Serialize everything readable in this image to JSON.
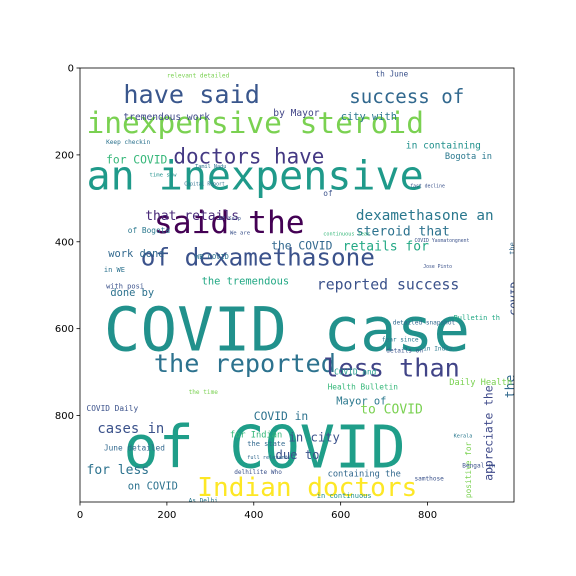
{
  "chart_data": {
    "type": "wordcloud",
    "title": "",
    "xlabel": "",
    "ylabel": "",
    "xlim": [
      0,
      999
    ],
    "ylim": [
      999,
      0
    ],
    "x_ticks": [
      0,
      200,
      400,
      600,
      800
    ],
    "y_ticks": [
      0,
      200,
      400,
      600,
      800
    ],
    "grid": false,
    "colormap": "viridis",
    "words": [
      {
        "text": "COVID case",
        "x": 55,
        "y": 650,
        "size": 140,
        "color": "#21918c"
      },
      {
        "text": "of COVID",
        "x": 100,
        "y": 920,
        "size": 135,
        "color": "#1f9e89"
      },
      {
        "text": "an inexpensive",
        "x": 15,
        "y": 280,
        "size": 92,
        "color": "#1f9a8a"
      },
      {
        "text": "inexpensive steroid",
        "x": 15,
        "y": 150,
        "size": 68,
        "color": "#7ad151"
      },
      {
        "text": "have said",
        "x": 100,
        "y": 80,
        "size": 58,
        "color": "#39568c"
      },
      {
        "text": "said the",
        "x": 170,
        "y": 380,
        "size": 72,
        "color": "#440154"
      },
      {
        "text": "of dexamethasone",
        "x": 140,
        "y": 455,
        "size": 56,
        "color": "#3b528b"
      },
      {
        "text": "the reported",
        "x": 170,
        "y": 700,
        "size": 58,
        "color": "#2c728e"
      },
      {
        "text": "less than",
        "x": 560,
        "y": 710,
        "size": 58,
        "color": "#414487"
      },
      {
        "text": "Indian doctors",
        "x": 270,
        "y": 985,
        "size": 60,
        "color": "#fde725"
      },
      {
        "text": "doctors have",
        "x": 215,
        "y": 220,
        "size": 48,
        "color": "#443983"
      },
      {
        "text": "success of",
        "x": 620,
        "y": 80,
        "size": 44,
        "color": "#31688e"
      },
      {
        "text": "dexamethasone an",
        "x": 635,
        "y": 350,
        "size": 33,
        "color": "#2a788e"
      },
      {
        "text": "reported success",
        "x": 545,
        "y": 510,
        "size": 34,
        "color": "#3b528b"
      },
      {
        "text": "retails for",
        "x": 605,
        "y": 420,
        "size": 30,
        "color": "#22a884"
      },
      {
        "text": "steroid that",
        "x": 635,
        "y": 385,
        "size": 30,
        "color": "#2c728e"
      },
      {
        "text": "that retails",
        "x": 150,
        "y": 350,
        "size": 30,
        "color": "#482878"
      },
      {
        "text": "the COVID",
        "x": 440,
        "y": 418,
        "size": 26,
        "color": "#31688e"
      },
      {
        "text": "cases in",
        "x": 40,
        "y": 840,
        "size": 32,
        "color": "#3b528b"
      },
      {
        "text": "for less",
        "x": 15,
        "y": 935,
        "size": 30,
        "color": "#2c728e"
      },
      {
        "text": "on COVID",
        "x": 110,
        "y": 970,
        "size": 24,
        "color": "#2c728e"
      },
      {
        "text": "for COVID",
        "x": 60,
        "y": 220,
        "size": 26,
        "color": "#35b779"
      },
      {
        "text": "tremendous work",
        "x": 100,
        "y": 120,
        "size": 22,
        "color": "#3e4989"
      },
      {
        "text": "by Mayor",
        "x": 445,
        "y": 110,
        "size": 22,
        "color": "#414487"
      },
      {
        "text": "city with",
        "x": 600,
        "y": 120,
        "size": 24,
        "color": "#2a788e"
      },
      {
        "text": "the tremendous",
        "x": 280,
        "y": 498,
        "size": 24,
        "color": "#22a884"
      },
      {
        "text": "done by",
        "x": 70,
        "y": 525,
        "size": 24,
        "color": "#2c728e"
      },
      {
        "text": "work done",
        "x": 65,
        "y": 435,
        "size": 24,
        "color": "#31688e"
      },
      {
        "text": "due to",
        "x": 450,
        "y": 900,
        "size": 28,
        "color": "#3b528b"
      },
      {
        "text": "to COVID",
        "x": 645,
        "y": 795,
        "size": 30,
        "color": "#7ad151"
      },
      {
        "text": "COVID in",
        "x": 400,
        "y": 810,
        "size": 26,
        "color": "#2c728e"
      },
      {
        "text": "in city",
        "x": 480,
        "y": 860,
        "size": 28,
        "color": "#3b528b"
      },
      {
        "text": "Mayor of",
        "x": 590,
        "y": 775,
        "size": 24,
        "color": "#2a788e"
      },
      {
        "text": "containing the",
        "x": 570,
        "y": 940,
        "size": 20,
        "color": "#31688e"
      },
      {
        "text": "appreciate the",
        "x": 950,
        "y": 950,
        "size": 26,
        "color": "#3e4989",
        "rotate": -90
      },
      {
        "text": "the",
        "x": 1000,
        "y": 760,
        "size": 30,
        "color": "#31688e",
        "rotate": -90
      },
      {
        "text": "COVID",
        "x": 1010,
        "y": 570,
        "size": 26,
        "color": "#3b528b",
        "rotate": -90
      },
      {
        "text": "in containing",
        "x": 750,
        "y": 185,
        "size": 22,
        "color": "#21918c"
      },
      {
        "text": "Bogota in",
        "x": 840,
        "y": 210,
        "size": 20,
        "color": "#2a788e"
      },
      {
        "text": "Health Bulletin",
        "x": 570,
        "y": 740,
        "size": 18,
        "color": "#35b779"
      },
      {
        "text": "Daily Health",
        "x": 850,
        "y": 730,
        "size": 20,
        "color": "#7ad151"
      },
      {
        "text": "COVID and",
        "x": 585,
        "y": 705,
        "size": 18,
        "color": "#1f9a8a"
      },
      {
        "text": "of Bogota",
        "x": 110,
        "y": 380,
        "size": 18,
        "color": "#2a788e"
      },
      {
        "text": "in WE",
        "x": 55,
        "y": 470,
        "size": 16,
        "color": "#2c728e"
      },
      {
        "text": "with posi",
        "x": 60,
        "y": 508,
        "size": 16,
        "color": "#3b528b"
      },
      {
        "text": "COVID Daily",
        "x": 15,
        "y": 790,
        "size": 18,
        "color": "#3b528b"
      },
      {
        "text": "June detailed",
        "x": 55,
        "y": 880,
        "size": 18,
        "color": "#31688e"
      },
      {
        "text": "for Indian",
        "x": 345,
        "y": 850,
        "size": 20,
        "color": "#35b779"
      },
      {
        "text": "WB COVID",
        "x": 265,
        "y": 440,
        "size": 16,
        "color": "#2c728e"
      },
      {
        "text": "Keep checkin",
        "x": 60,
        "y": 175,
        "size": 14,
        "color": "#2c728e"
      },
      {
        "text": "time saw",
        "x": 160,
        "y": 250,
        "size": 13,
        "color": "#21918c"
      },
      {
        "text": "relevant detailed",
        "x": 200,
        "y": 22,
        "size": 14,
        "color": "#7ad151"
      },
      {
        "text": "th June",
        "x": 680,
        "y": 20,
        "size": 18,
        "color": "#3b528b"
      },
      {
        "text": "Bulletin th",
        "x": 860,
        "y": 580,
        "size": 16,
        "color": "#22a884"
      },
      {
        "text": "the time",
        "x": 250,
        "y": 750,
        "size": 14,
        "color": "#7ad151"
      },
      {
        "text": "the state",
        "x": 385,
        "y": 870,
        "size": 16,
        "color": "#31688e"
      },
      {
        "text": "delhilite Who",
        "x": 355,
        "y": 935,
        "size": 14,
        "color": "#3b528b"
      },
      {
        "text": "in continuous",
        "x": 545,
        "y": 990,
        "size": 16,
        "color": "#21918c"
      },
      {
        "text": "detailed snapshot",
        "x": 720,
        "y": 590,
        "size": 14,
        "color": "#31688e"
      },
      {
        "text": "fear since",
        "x": 695,
        "y": 630,
        "size": 14,
        "color": "#2a788e"
      },
      {
        "text": "in India",
        "x": 790,
        "y": 650,
        "size": 14,
        "color": "#2a788e"
      },
      {
        "text": "details on",
        "x": 705,
        "y": 655,
        "size": 14,
        "color": "#3b528b"
      },
      {
        "text": "samthose",
        "x": 770,
        "y": 950,
        "size": 14,
        "color": "#3b528b"
      },
      {
        "text": "continuous fear",
        "x": 560,
        "y": 385,
        "size": 12,
        "color": "#35b779"
      },
      {
        "text": "COVID Yasmatongnent",
        "x": 770,
        "y": 400,
        "size": 11,
        "color": "#3b528b"
      },
      {
        "text": "AB Kolp",
        "x": 320,
        "y": 350,
        "size": 12,
        "color": "#3b528b"
      },
      {
        "text": "We are",
        "x": 345,
        "y": 383,
        "size": 13,
        "color": "#3b528b"
      },
      {
        "text": "of",
        "x": 560,
        "y": 295,
        "size": 18,
        "color": "#3b528b"
      },
      {
        "text": "the",
        "x": 1000,
        "y": 430,
        "size": 16,
        "color": "#31688e",
        "rotate": -90
      },
      {
        "text": "positive for",
        "x": 900,
        "y": 990,
        "size": 18,
        "color": "#7ad151",
        "rotate": -90
      },
      {
        "text": "Bengal in",
        "x": 880,
        "y": 920,
        "size": 14,
        "color": "#3b528b"
      },
      {
        "text": "As Delhi",
        "x": 250,
        "y": 1000,
        "size": 14,
        "color": "#2a788e"
      },
      {
        "text": "Tamil Nadu",
        "x": 265,
        "y": 230,
        "size": 12,
        "color": "#2c728e"
      },
      {
        "text": "Capital Report",
        "x": 240,
        "y": 270,
        "size": 11,
        "color": "#2c728e"
      },
      {
        "text": "fast decline",
        "x": 760,
        "y": 275,
        "size": 11,
        "color": "#3b528b"
      },
      {
        "text": "Jose Pinto",
        "x": 790,
        "y": 460,
        "size": 11,
        "color": "#3b528b"
      },
      {
        "text": "full relevant",
        "x": 385,
        "y": 900,
        "size": 12,
        "color": "#31688e"
      },
      {
        "text": "Kerala",
        "x": 860,
        "y": 850,
        "size": 12,
        "color": "#2a788e"
      }
    ]
  }
}
